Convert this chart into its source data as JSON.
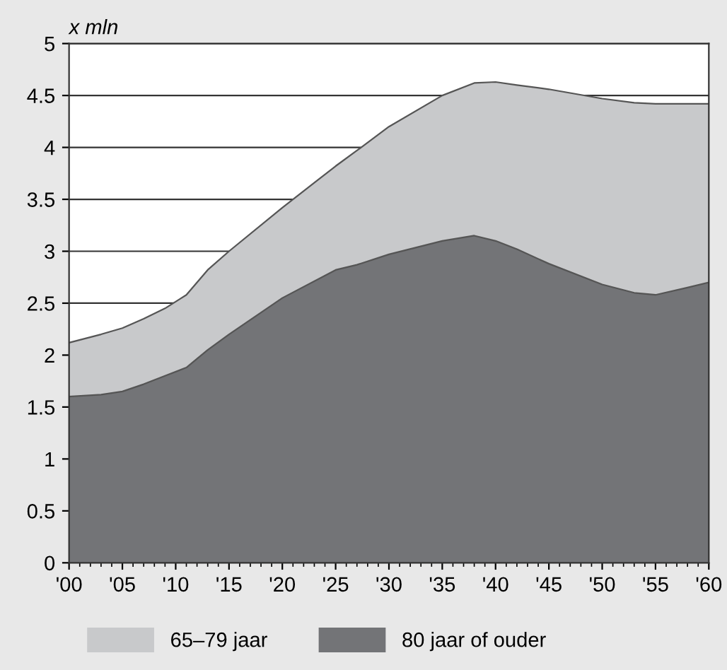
{
  "chart_data": {
    "type": "area",
    "stacked": true,
    "ylabel": "x mln",
    "x": [
      2000,
      2003,
      2005,
      2007,
      2009,
      2011,
      2013,
      2015,
      2020,
      2025,
      2027,
      2030,
      2035,
      2038,
      2040,
      2042,
      2045,
      2050,
      2053,
      2055,
      2058,
      2060
    ],
    "series": [
      {
        "name": "80 jaar of ouder",
        "color": "#737477",
        "values": [
          1.6,
          1.62,
          1.65,
          1.72,
          1.8,
          1.88,
          2.05,
          2.2,
          2.55,
          2.82,
          2.87,
          2.97,
          3.1,
          3.15,
          3.1,
          3.02,
          2.88,
          2.68,
          2.6,
          2.58,
          2.65,
          2.7
        ]
      },
      {
        "name": "65–79 jaar",
        "color": "#c8c9cb",
        "values": [
          0.52,
          0.58,
          0.61,
          0.63,
          0.65,
          0.7,
          0.77,
          0.8,
          0.87,
          1.0,
          1.1,
          1.23,
          1.4,
          1.47,
          1.53,
          1.58,
          1.68,
          1.79,
          1.83,
          1.84,
          1.77,
          1.72
        ]
      }
    ],
    "xlim": [
      2000,
      2060
    ],
    "xticks": [
      {
        "value": 2000,
        "label": "'00"
      },
      {
        "value": 2005,
        "label": "'05"
      },
      {
        "value": 2010,
        "label": "'10"
      },
      {
        "value": 2015,
        "label": "'15"
      },
      {
        "value": 2020,
        "label": "'20"
      },
      {
        "value": 2025,
        "label": "'25"
      },
      {
        "value": 2030,
        "label": "'30"
      },
      {
        "value": 2035,
        "label": "'35"
      },
      {
        "value": 2040,
        "label": "'40"
      },
      {
        "value": 2045,
        "label": "'45"
      },
      {
        "value": 2050,
        "label": "'50"
      },
      {
        "value": 2055,
        "label": "'55"
      },
      {
        "value": 2060,
        "label": "'60"
      }
    ],
    "ylim": [
      0,
      5
    ],
    "yticks": [
      0,
      0.5,
      1,
      1.5,
      2,
      2.5,
      3,
      3.5,
      4,
      4.5,
      5
    ],
    "grid": "y",
    "legend": "bottom"
  }
}
